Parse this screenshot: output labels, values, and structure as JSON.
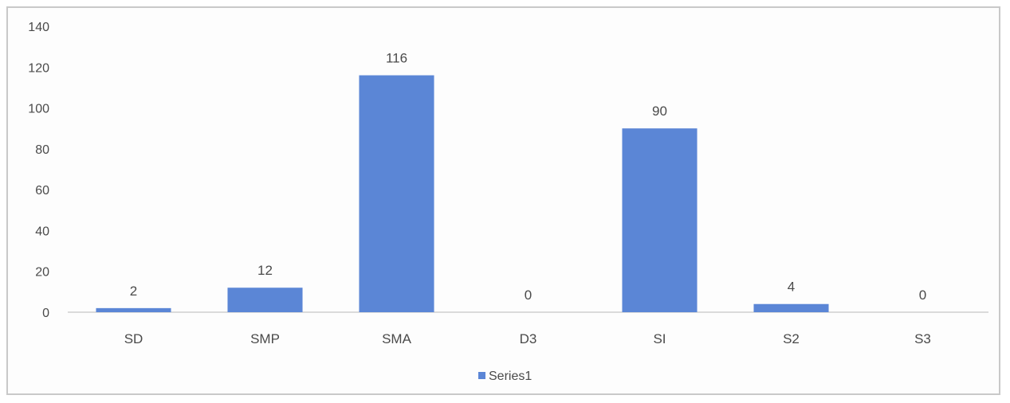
{
  "chart_data": {
    "type": "bar",
    "categories": [
      "SD",
      "SMP",
      "SMA",
      "D3",
      "SI",
      "S2",
      "S3"
    ],
    "series": [
      {
        "name": "Series1",
        "values": [
          2,
          12,
          116,
          0,
          90,
          4,
          0
        ],
        "color": "#5b86d6"
      }
    ],
    "ylim": [
      0,
      140
    ],
    "yticks": [
      0,
      20,
      40,
      60,
      80,
      100,
      120,
      140
    ],
    "grid": false,
    "data_labels": true,
    "legend_position": "bottom"
  }
}
